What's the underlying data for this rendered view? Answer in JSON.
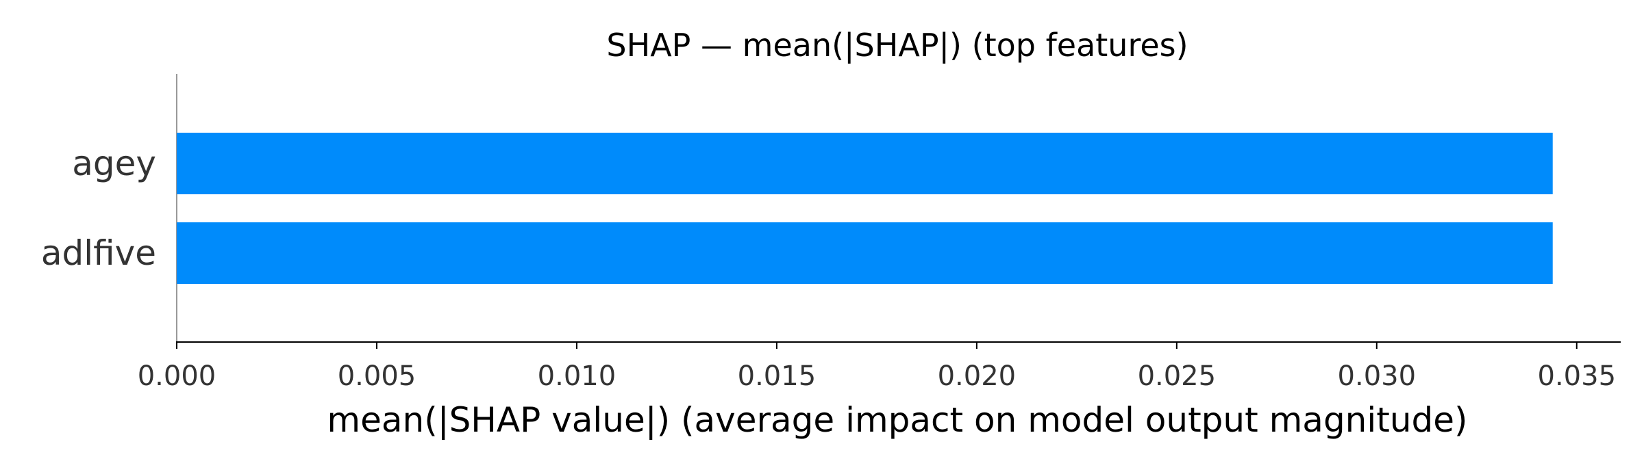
{
  "chart_data": {
    "type": "bar",
    "orientation": "horizontal",
    "title": "SHAP — mean(|SHAP|) (top features)",
    "xlabel": "mean(|SHAP value|) (average impact on model output magnitude)",
    "ylabel": "",
    "categories": [
      "agey",
      "adlfive"
    ],
    "values": [
      0.0344,
      0.0344
    ],
    "xlim": [
      0,
      0.0361
    ],
    "xticks": [
      0.0,
      0.005,
      0.01,
      0.015,
      0.02,
      0.025,
      0.03,
      0.035
    ],
    "xtick_labels": [
      "0.000",
      "0.005",
      "0.010",
      "0.015",
      "0.020",
      "0.025",
      "0.030",
      "0.035"
    ],
    "grid": false,
    "bar_color": "#008bfb"
  }
}
